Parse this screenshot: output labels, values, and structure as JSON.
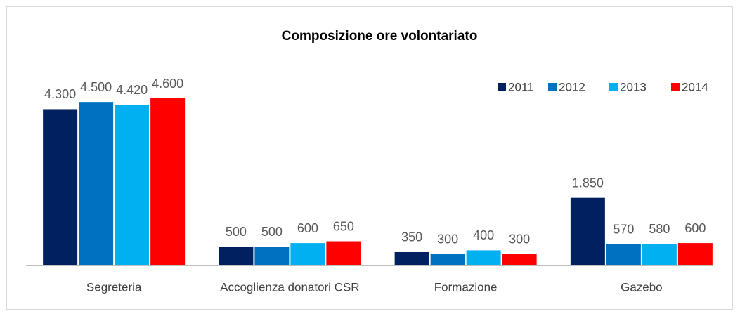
{
  "chart_data": {
    "type": "bar",
    "title": "Composizione ore volontariato",
    "categories": [
      "Segreteria",
      "Accoglienza donatori CSR",
      "Formazione",
      "Gazebo"
    ],
    "series": [
      {
        "name": "2011",
        "color": "#002060",
        "values": [
          4300,
          500,
          350,
          1850
        ],
        "value_labels": [
          "4.300",
          "500",
          "350",
          "1.850"
        ]
      },
      {
        "name": "2012",
        "color": "#0070c0",
        "values": [
          4500,
          500,
          300,
          570
        ],
        "value_labels": [
          "4.500",
          "500",
          "300",
          "570"
        ]
      },
      {
        "name": "2013",
        "color": "#00b0f0",
        "values": [
          4420,
          600,
          400,
          580
        ],
        "value_labels": [
          "4.420",
          "600",
          "400",
          "580"
        ]
      },
      {
        "name": "2014",
        "color": "#ff0000",
        "values": [
          4600,
          650,
          300,
          600
        ],
        "value_labels": [
          "4.600",
          "650",
          "300",
          "600"
        ]
      }
    ],
    "legend": "top-right",
    "grid": false
  }
}
